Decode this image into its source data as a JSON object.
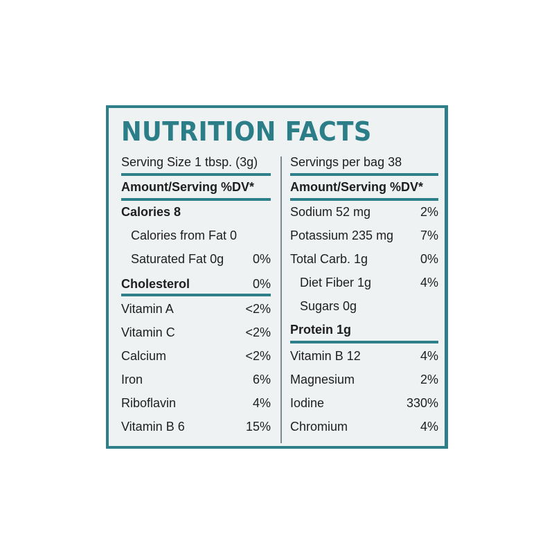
{
  "title": "NUTRITION FACTS",
  "left": {
    "header": "Serving Size 1 tbsp. (3g)",
    "amount_header": "Amount/Serving %DV*",
    "rows": [
      {
        "name": "Calories 8",
        "value": ""
      },
      {
        "name": "Calories from Fat 0",
        "value": ""
      },
      {
        "name": "Saturated Fat 0g",
        "value": "0%"
      },
      {
        "name": "Cholesterol",
        "value": "0%"
      },
      {
        "name": "Vitamin A",
        "value": "<2%"
      },
      {
        "name": "Vitamin C",
        "value": "<2%"
      },
      {
        "name": "Calcium",
        "value": "<2%"
      },
      {
        "name": "Iron",
        "value": "6%"
      },
      {
        "name": "Riboflavin",
        "value": "4%"
      },
      {
        "name": "Vitamin B 6",
        "value": "15%"
      }
    ]
  },
  "right": {
    "header": "Servings per bag 38",
    "amount_header": "Amount/Serving %DV*",
    "rows": [
      {
        "name": "Sodium 52 mg",
        "value": "2%"
      },
      {
        "name": "Potassium 235 mg",
        "value": "7%"
      },
      {
        "name": "Total Carb. 1g",
        "value": "0%"
      },
      {
        "name": "Diet Fiber 1g",
        "value": "4%"
      },
      {
        "name": "Sugars 0g",
        "value": ""
      },
      {
        "name": "Protein 1g",
        "value": ""
      },
      {
        "name": "Vitamin B 12",
        "value": "4%"
      },
      {
        "name": "Magnesium",
        "value": "2%"
      },
      {
        "name": "Iodine",
        "value": "330%"
      },
      {
        "name": "Chromium",
        "value": "4%"
      }
    ]
  },
  "colors": {
    "accent": "#2d7f89",
    "panel": "#eef2f3",
    "text": "#1e1e1e"
  }
}
